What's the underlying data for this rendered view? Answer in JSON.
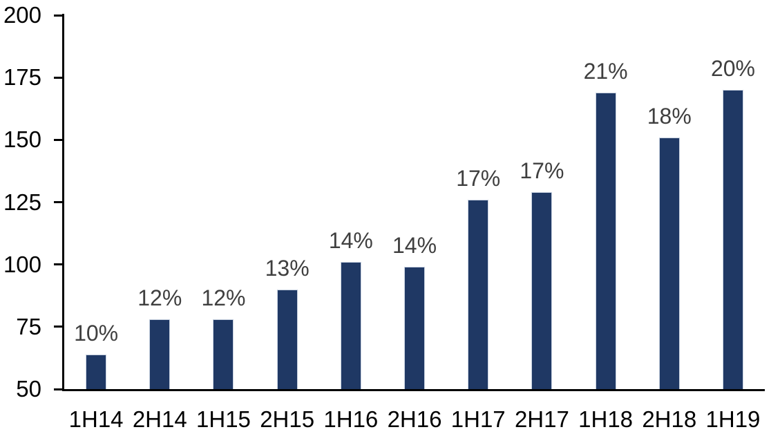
{
  "chart_data": {
    "type": "bar",
    "title": "",
    "categories": [
      "1H14",
      "2H14",
      "1H15",
      "2H15",
      "1H16",
      "2H16",
      "1H17",
      "2H17",
      "1H18",
      "2H18",
      "1H19"
    ],
    "values": [
      64,
      78,
      78,
      90,
      101,
      99,
      126,
      129,
      169,
      151,
      170
    ],
    "bar_labels": [
      "10%",
      "12%",
      "12%",
      "13%",
      "14%",
      "14%",
      "17%",
      "17%",
      "21%",
      "18%",
      "20%"
    ],
    "ylim": [
      50,
      200
    ],
    "yticks": [
      200,
      175,
      150,
      125,
      100,
      75,
      50
    ],
    "grid": false,
    "legend": false,
    "colors": {
      "bar_fill": "#1F3864",
      "bar_border": "#C7D1E0",
      "data_label": "#3F3F3F",
      "axis": "#000000",
      "background": "#FFFFFF"
    }
  }
}
